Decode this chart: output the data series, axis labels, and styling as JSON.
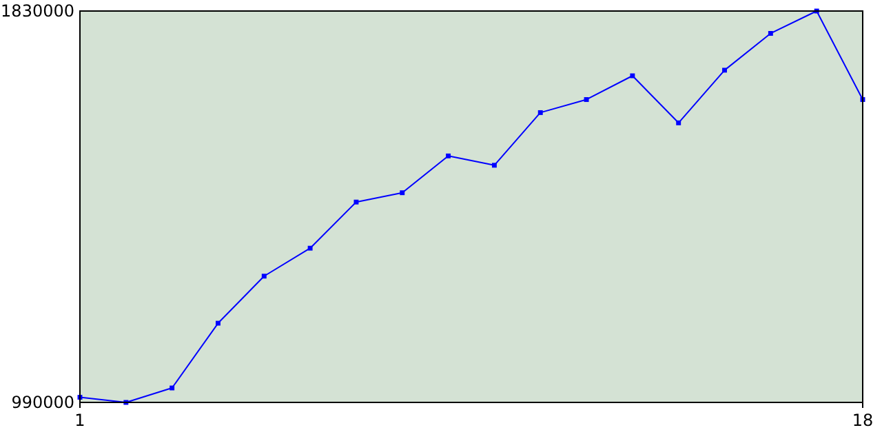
{
  "chart_data": {
    "type": "line",
    "x": [
      1,
      2,
      3,
      4,
      5,
      6,
      7,
      8,
      9,
      10,
      11,
      12,
      13,
      14,
      15,
      16,
      17,
      18
    ],
    "series": [
      {
        "color": "#0000ff",
        "values": [
          1001000,
          990000,
          1021000,
          1160000,
          1261000,
          1321000,
          1420000,
          1440000,
          1519000,
          1499000,
          1612000,
          1640000,
          1691000,
          1590000,
          1703000,
          1782000,
          1830000,
          1640000
        ]
      }
    ],
    "xlim": [
      1,
      18
    ],
    "xticks": [
      1,
      18
    ],
    "ylim": [
      990000,
      1830000
    ],
    "yticks": [
      990000,
      1830000
    ],
    "marker": "square",
    "line_style": "solid"
  }
}
